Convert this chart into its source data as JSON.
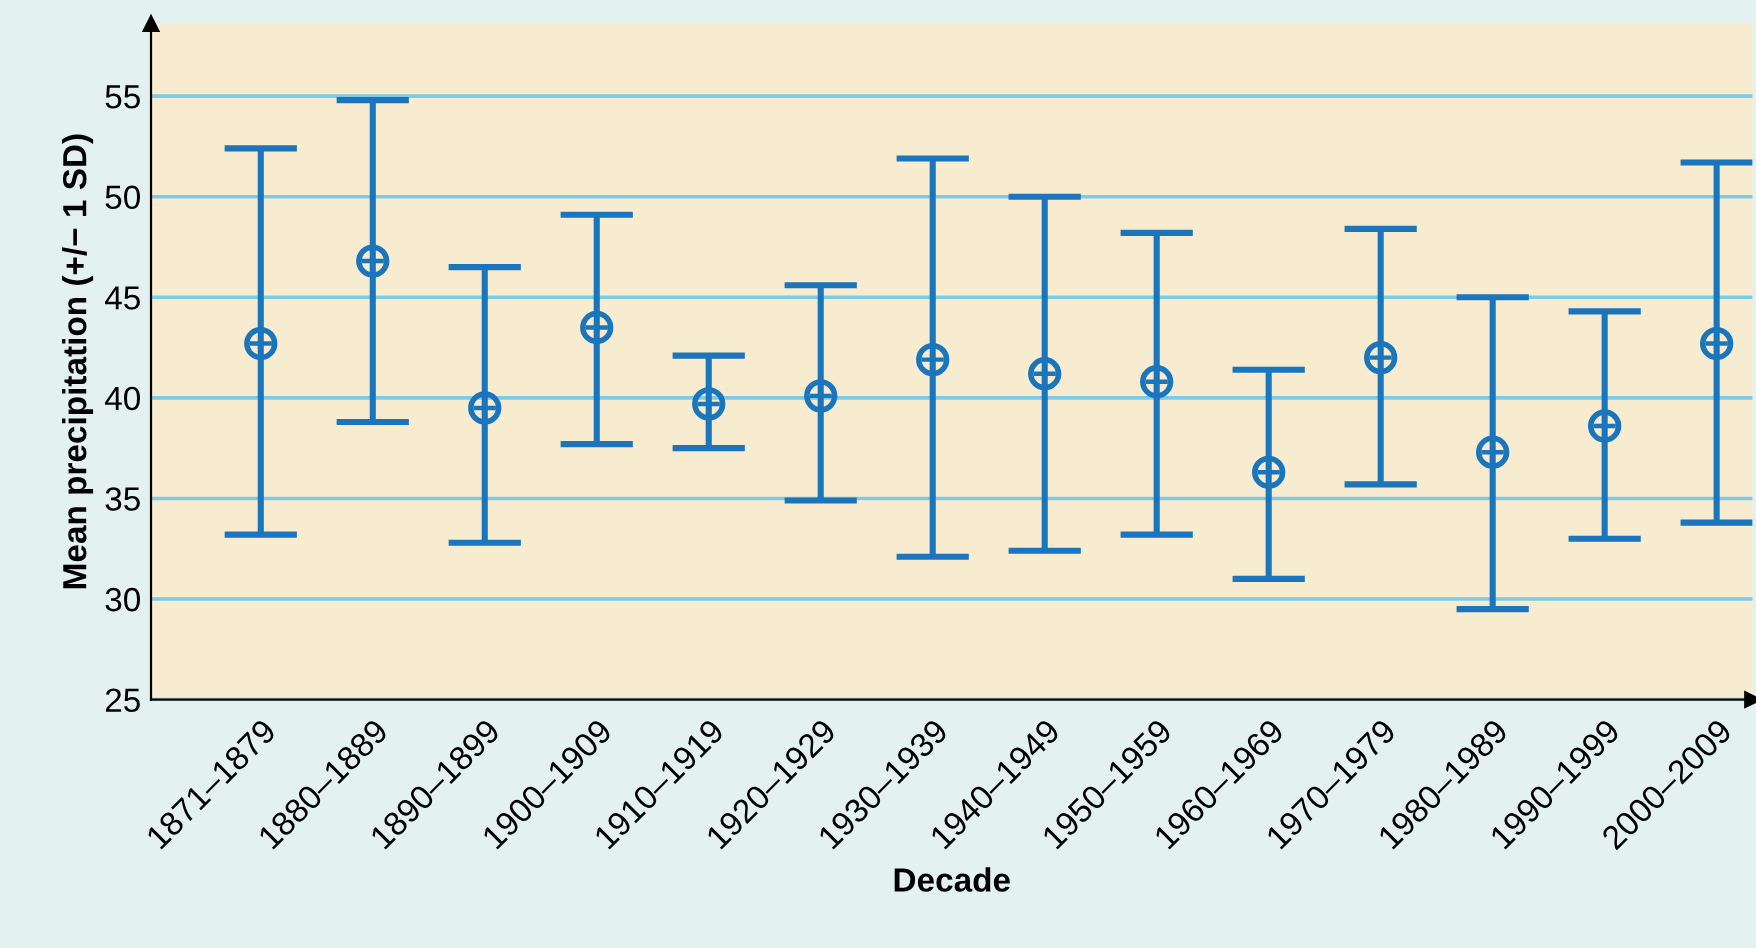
{
  "chart_data": {
    "type": "scatter",
    "xlabel": "Decade",
    "ylabel": "Mean precipitation (+/− 1 SD)",
    "categories": [
      "1871–1879",
      "1880–1889",
      "1890–1899",
      "1900–1909",
      "1910–1919",
      "1920–1929",
      "1930–1939",
      "1940–1949",
      "1950–1959",
      "1960–1969",
      "1970–1979",
      "1980–1989",
      "1990–1999",
      "2000–2009"
    ],
    "series": [
      {
        "color": "#1b75bc",
        "values": [
          42.7,
          46.8,
          39.5,
          43.5,
          39.7,
          40.1,
          41.9,
          41.2,
          40.8,
          36.3,
          42.0,
          37.3,
          38.6,
          42.7
        ],
        "errors": [
          [
            33.2,
            52.4
          ],
          [
            38.8,
            54.8
          ],
          [
            32.8,
            46.5
          ],
          [
            37.7,
            49.1
          ],
          [
            37.5,
            42.1
          ],
          [
            34.9,
            45.6
          ],
          [
            32.1,
            51.9
          ],
          [
            32.4,
            50.0
          ],
          [
            33.2,
            48.2
          ],
          [
            31.0,
            41.4
          ],
          [
            35.7,
            48.4
          ],
          [
            29.5,
            45.0
          ],
          [
            33.0,
            44.3
          ],
          [
            33.8,
            51.7
          ]
        ]
      }
    ],
    "ylim": [
      25,
      58.6
    ],
    "yticks": [
      25,
      30,
      35,
      40,
      45,
      50,
      55
    ],
    "grid": "y",
    "marker": "circle",
    "legend": false
  }
}
